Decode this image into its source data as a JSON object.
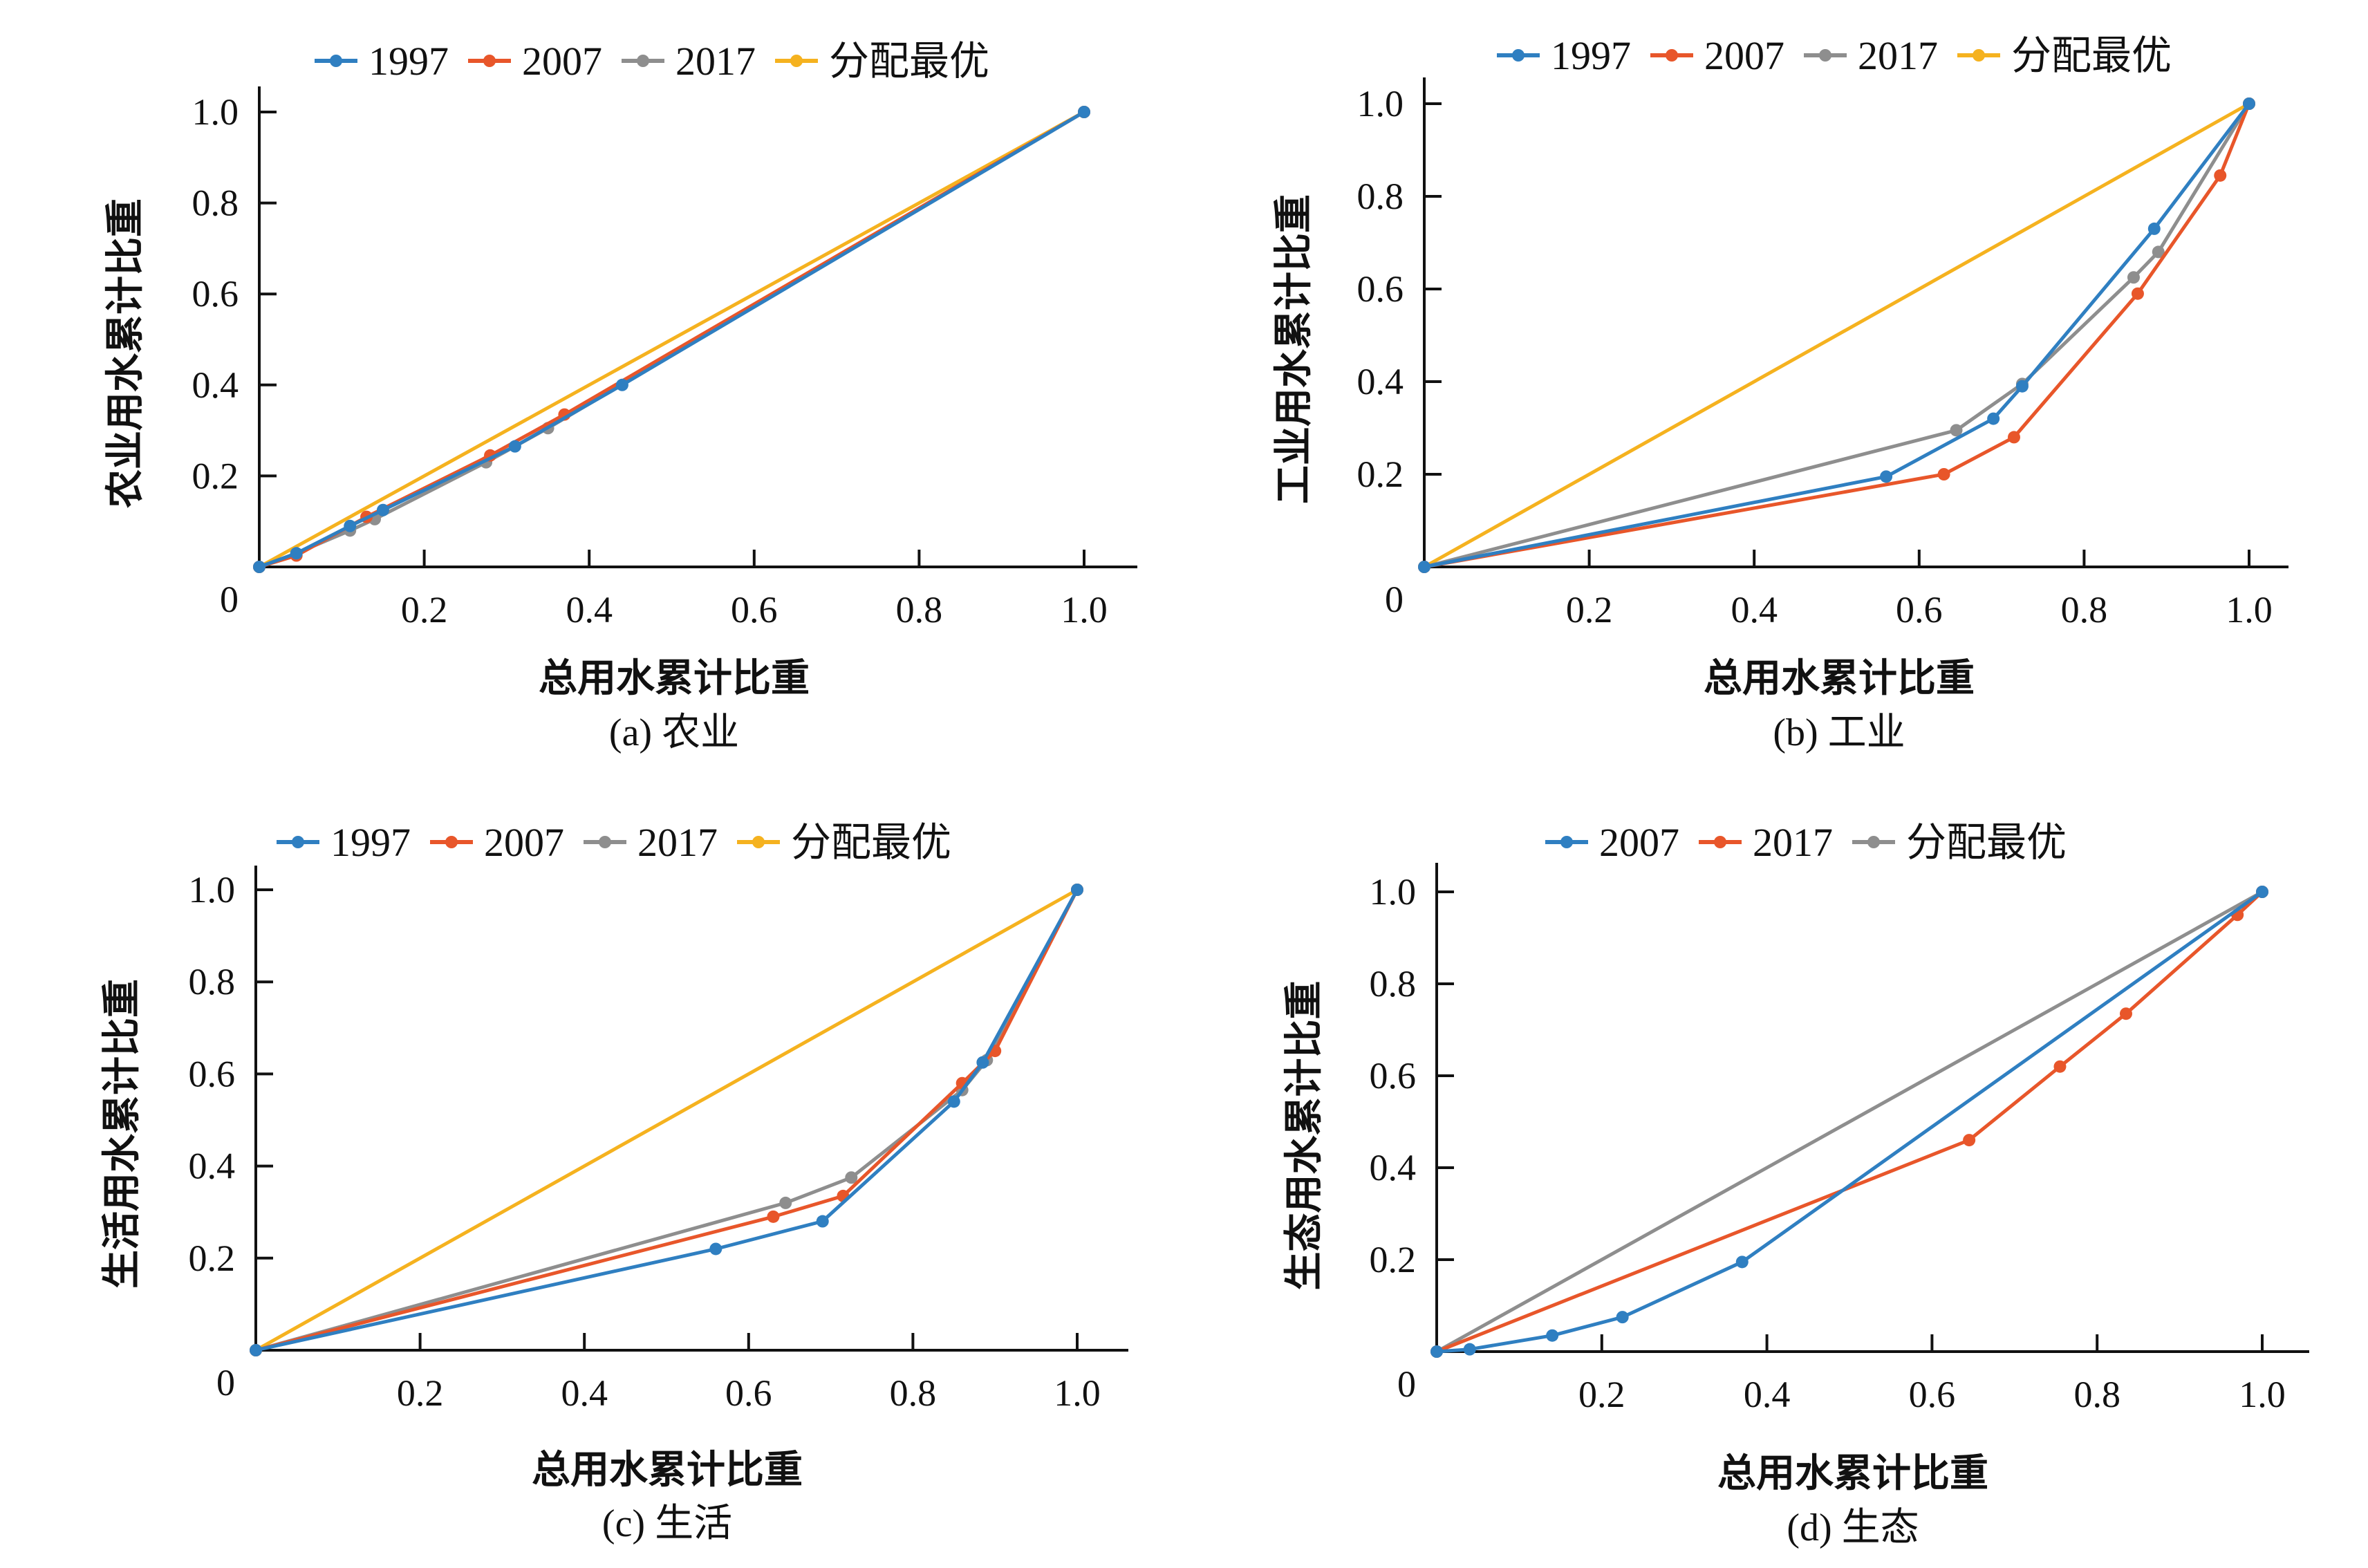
{
  "colors": {
    "blue": "#2f7fc1",
    "red": "#e8562a",
    "gray": "#8e8e8e",
    "gold": "#f5b21f"
  },
  "chart_data": [
    {
      "id": "a",
      "type": "line",
      "caption": "(a) 农业",
      "xlabel": "总用水累计比重",
      "ylabel": "农业用水累计比重",
      "xlim": [
        0,
        1.06
      ],
      "ylim": [
        0,
        1.06
      ],
      "x_ticks": [
        "0.2",
        "0.4",
        "0.6",
        "0.8",
        "1.0"
      ],
      "y_ticks": [
        "0.2",
        "0.4",
        "0.6",
        "0.8",
        "1.0"
      ],
      "origin_label": "0",
      "legend_position": "top-center",
      "series": [
        {
          "name": "1997",
          "color": "blue",
          "points": [
            [
              0,
              0
            ],
            [
              0.045,
              0.03
            ],
            [
              0.11,
              0.09
            ],
            [
              0.15,
              0.125
            ],
            [
              0.31,
              0.265
            ],
            [
              0.44,
              0.4
            ],
            [
              1,
              1
            ]
          ]
        },
        {
          "name": "2007",
          "color": "red",
          "points": [
            [
              0,
              0
            ],
            [
              0.045,
              0.025
            ],
            [
              0.13,
              0.11
            ],
            [
              0.28,
              0.245
            ],
            [
              0.37,
              0.335
            ],
            [
              1,
              1
            ]
          ]
        },
        {
          "name": "2017",
          "color": "gray",
          "points": [
            [
              0,
              0
            ],
            [
              0.045,
              0.03
            ],
            [
              0.11,
              0.08
            ],
            [
              0.14,
              0.105
            ],
            [
              0.275,
              0.23
            ],
            [
              0.35,
              0.305
            ],
            [
              1,
              1
            ]
          ]
        },
        {
          "name": "分配最优",
          "color": "gold",
          "points": [
            [
              0,
              0
            ],
            [
              1,
              1
            ]
          ]
        }
      ]
    },
    {
      "id": "b",
      "type": "line",
      "caption": "(b) 工业",
      "xlabel": "总用水累计比重",
      "ylabel": "工业用水累计比重",
      "xlim": [
        0,
        1.06
      ],
      "ylim": [
        0,
        1.06
      ],
      "x_ticks": [
        "0.2",
        "0.4",
        "0.6",
        "0.8",
        "1.0"
      ],
      "y_ticks": [
        "0.2",
        "0.4",
        "0.6",
        "0.8",
        "1.0"
      ],
      "origin_label": "0",
      "legend_position": "top-center",
      "series": [
        {
          "name": "1997",
          "color": "blue",
          "points": [
            [
              0,
              0
            ],
            [
              0.56,
              0.195
            ],
            [
              0.69,
              0.32
            ],
            [
              0.725,
              0.39
            ],
            [
              0.885,
              0.73
            ],
            [
              1,
              1
            ]
          ]
        },
        {
          "name": "2007",
          "color": "red",
          "points": [
            [
              0,
              0
            ],
            [
              0.63,
              0.2
            ],
            [
              0.715,
              0.28
            ],
            [
              0.865,
              0.59
            ],
            [
              0.965,
              0.845
            ],
            [
              1,
              1
            ]
          ]
        },
        {
          "name": "2017",
          "color": "gray",
          "points": [
            [
              0,
              0
            ],
            [
              0.645,
              0.295
            ],
            [
              0.725,
              0.395
            ],
            [
              0.86,
              0.625
            ],
            [
              0.89,
              0.68
            ],
            [
              1,
              1
            ]
          ]
        },
        {
          "name": "分配最优",
          "color": "gold",
          "points": [
            [
              0,
              0
            ],
            [
              1,
              1
            ]
          ]
        }
      ]
    },
    {
      "id": "c",
      "type": "line",
      "caption": "(c) 生活",
      "xlabel": "总用水累计比重",
      "ylabel": "生活用水累计比重",
      "xlim": [
        0,
        1.06
      ],
      "ylim": [
        0,
        1.06
      ],
      "x_ticks": [
        "0.2",
        "0.4",
        "0.6",
        "0.8",
        "1.0"
      ],
      "y_ticks": [
        "0.2",
        "0.4",
        "0.6",
        "0.8",
        "1.0"
      ],
      "origin_label": "0",
      "legend_position": "top-center",
      "series": [
        {
          "name": "1997",
          "color": "blue",
          "points": [
            [
              0,
              0
            ],
            [
              0.56,
              0.22
            ],
            [
              0.69,
              0.28
            ],
            [
              0.85,
              0.54
            ],
            [
              0.885,
              0.625
            ],
            [
              1,
              1
            ]
          ]
        },
        {
          "name": "2007",
          "color": "red",
          "points": [
            [
              0,
              0
            ],
            [
              0.63,
              0.29
            ],
            [
              0.715,
              0.335
            ],
            [
              0.86,
              0.58
            ],
            [
              0.9,
              0.65
            ],
            [
              1,
              1
            ]
          ]
        },
        {
          "name": "2017",
          "color": "gray",
          "points": [
            [
              0,
              0
            ],
            [
              0.645,
              0.32
            ],
            [
              0.725,
              0.375
            ],
            [
              0.86,
              0.565
            ],
            [
              0.89,
              0.63
            ],
            [
              1,
              1
            ]
          ]
        },
        {
          "name": "分配最优",
          "color": "gold",
          "points": [
            [
              0,
              0
            ],
            [
              1,
              1
            ]
          ]
        }
      ]
    },
    {
      "id": "d",
      "type": "line",
      "caption": "(d) 生态",
      "xlabel": "总用水累计比重",
      "ylabel": "生态用水累计比重",
      "xlim": [
        0,
        1.06
      ],
      "ylim": [
        0,
        1.06
      ],
      "x_ticks": [
        "0.2",
        "0.4",
        "0.6",
        "0.8",
        "1.0"
      ],
      "y_ticks": [
        "0.2",
        "0.4",
        "0.6",
        "0.8",
        "1.0"
      ],
      "origin_label": "0",
      "legend_position": "top-center",
      "series": [
        {
          "name": "2007",
          "color": "blue",
          "points": [
            [
              0,
              0
            ],
            [
              0.04,
              0.005
            ],
            [
              0.14,
              0.035
            ],
            [
              0.225,
              0.075
            ],
            [
              0.37,
              0.195
            ],
            [
              1,
              1
            ]
          ]
        },
        {
          "name": "2017",
          "color": "red",
          "points": [
            [
              0,
              0
            ],
            [
              0.645,
              0.46
            ],
            [
              0.755,
              0.62
            ],
            [
              0.835,
              0.735
            ],
            [
              0.97,
              0.95
            ],
            [
              1,
              1
            ]
          ]
        },
        {
          "name": "分配最优",
          "color": "gray",
          "points": [
            [
              0,
              0
            ],
            [
              1,
              1
            ]
          ]
        }
      ]
    }
  ]
}
